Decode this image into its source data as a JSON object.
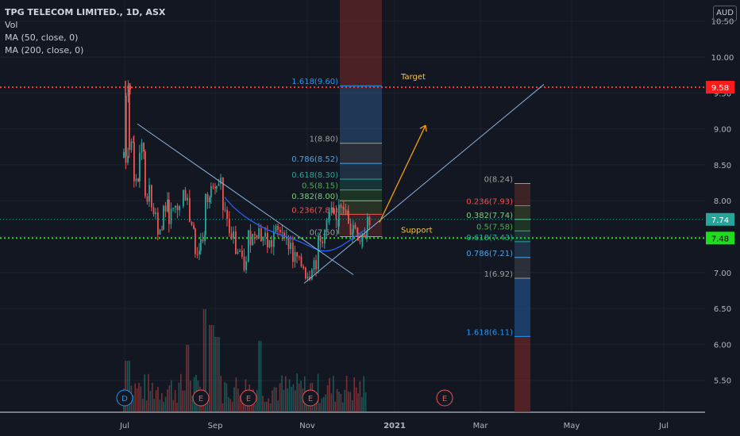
{
  "header": {
    "symbol": "TPG TELECOM LIMITED., 1D, ASX",
    "indicators": [
      "Vol",
      "MA (50, close, 0)",
      "MA (200, close, 0)"
    ],
    "currency": "AUD"
  },
  "colors": {
    "background": "#131722",
    "grid": "#1e222d",
    "axis_text": "#b2b5be",
    "up_candle": "#26a69a",
    "down_candle": "#ef5350",
    "target_line": "#ff2d2d",
    "support_line": "#1fdc1f",
    "trendline": "#8fb4e0",
    "arrow": "#f59e0b"
  },
  "chart_data": {
    "type": "candlestick",
    "title": "TPG TELECOM LIMITED., 1D, ASX",
    "currency": "AUD",
    "x_ticks": [
      "Jul",
      "Sep",
      "Nov",
      "2021",
      "Mar",
      "May",
      "Jul"
    ],
    "y_ticks": [
      "10.50",
      "10.00",
      "9.50",
      "9.00",
      "8.50",
      "8.00",
      "7.50",
      "7.00",
      "6.50",
      "6.00",
      "5.50"
    ],
    "ylim": [
      5.2,
      10.6
    ],
    "price_labels": [
      {
        "text": "9.58",
        "value": 9.58,
        "bg": "#ff1a1a"
      },
      {
        "text": "7.74",
        "value": 7.74,
        "bg": "#26a69a"
      },
      {
        "text": "7.48",
        "value": 7.48,
        "bg": "#1fdc1f"
      }
    ],
    "horizontal_lines": [
      {
        "name": "Target",
        "value": 9.58,
        "style": "dotted",
        "color": "#ff2d2d"
      },
      {
        "name": "Support",
        "value": 7.48,
        "style": "dotted",
        "color": "#1fdc1f"
      },
      {
        "name": "last-price",
        "value": 7.74,
        "style": "dotted",
        "color": "#26a69a"
      }
    ],
    "annotations": [
      "Target",
      "Support"
    ],
    "fib_extension_1": {
      "levels": [
        {
          "label": "1.618(9.60)",
          "value": 9.6,
          "color": "#2196f3"
        },
        {
          "label": "1(8.80)",
          "value": 8.8,
          "color": "#9e9e9e"
        },
        {
          "label": "0.786(8.52)",
          "value": 8.52,
          "color": "#4fa3e0"
        },
        {
          "label": "0.618(8.30)",
          "value": 8.3,
          "color": "#26a69a"
        },
        {
          "label": "0.5(8.15)",
          "value": 8.15,
          "color": "#4caf50"
        },
        {
          "label": "0.382(8.00)",
          "value": 8.0,
          "color": "#81c784"
        },
        {
          "label": "0.236(7.81)",
          "value": 7.81,
          "color": "#ef5350"
        },
        {
          "label": "0(7.50)",
          "value": 7.5,
          "color": "#9e9e9e"
        }
      ]
    },
    "fib_extension_2": {
      "levels": [
        {
          "label": "0(8.24)",
          "value": 8.24,
          "color": "#9e9e9e"
        },
        {
          "label": "0.236(7.93)",
          "value": 7.93,
          "color": "#ef5350"
        },
        {
          "label": "0.382(7.74)",
          "value": 7.74,
          "color": "#81c784"
        },
        {
          "label": "0.5(7.58)",
          "value": 7.58,
          "color": "#4caf50"
        },
        {
          "label": "0.618(7.43)",
          "value": 7.43,
          "color": "#26a69a"
        },
        {
          "label": "0.786(7.21)",
          "value": 7.21,
          "color": "#4fa3e0"
        },
        {
          "label": "1(6.92)",
          "value": 6.92,
          "color": "#9e9e9e"
        },
        {
          "label": "1.618(6.11)",
          "value": 6.11,
          "color": "#2196f3"
        }
      ]
    },
    "events": [
      {
        "label": "D",
        "color": "#2196f3"
      },
      {
        "label": "E",
        "color": "#ef5350"
      },
      {
        "label": "E",
        "color": "#ef5350"
      },
      {
        "label": "E",
        "color": "#ef5350"
      },
      {
        "label": "E",
        "color": "#ef5350"
      }
    ],
    "price_series_key_points": [
      {
        "date": "Jul",
        "close": 8.6
      },
      {
        "date": "Jul",
        "high": 9.67
      },
      {
        "date": "Aug",
        "close": 7.8
      },
      {
        "date": "Sep",
        "close": 8.2
      },
      {
        "date": "Oct",
        "close": 7.3
      },
      {
        "date": "Nov",
        "close": 7.0
      },
      {
        "date": "Dec",
        "close": 7.74
      }
    ]
  }
}
